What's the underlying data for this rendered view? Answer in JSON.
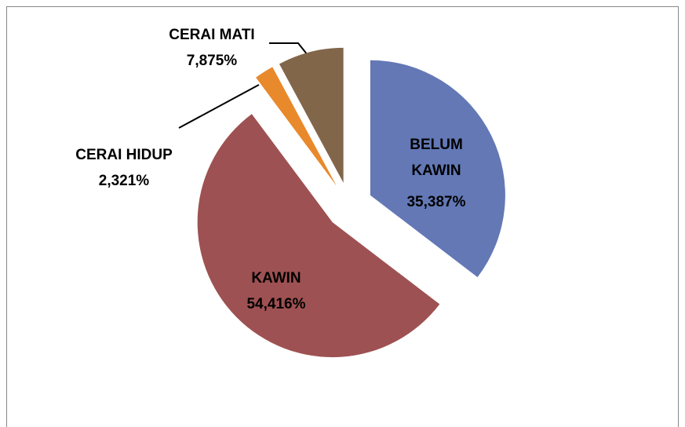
{
  "chart_data": {
    "type": "pie",
    "categories": [
      "BELUM KAWIN",
      "KAWIN",
      "CERAI HIDUP",
      "CERAI MATI"
    ],
    "values": [
      35.387,
      54.416,
      2.321,
      7.875
    ],
    "value_labels": [
      "35,387%",
      "54,416%",
      "2,321%",
      "7,875%"
    ],
    "colors": [
      "#6378b5",
      "#9e5152",
      "#e8892c",
      "#82664a"
    ],
    "start_angle": 0,
    "direction": "clockwise",
    "exploded": true
  }
}
